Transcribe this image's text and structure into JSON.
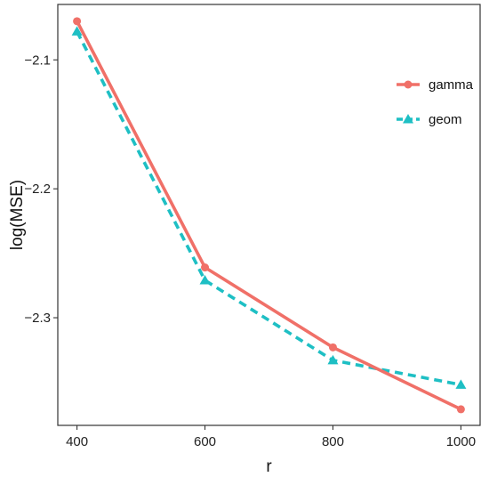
{
  "chart_data": {
    "type": "line",
    "title": "",
    "xlabel": "r",
    "ylabel": "log(MSE)",
    "x": [
      400,
      600,
      800,
      1000
    ],
    "x_ticks": [
      "400",
      "600",
      "800",
      "1000"
    ],
    "y_ticks": [
      {
        "value": -2.1,
        "label": "−2.1"
      },
      {
        "value": -2.2,
        "label": "−2.2"
      },
      {
        "value": -2.3,
        "label": "−2.3"
      }
    ],
    "xlim": [
      370,
      1030
    ],
    "ylim": [
      -2.3835,
      -2.057
    ],
    "grid": false,
    "legend_position": "top-right",
    "series": [
      {
        "name": "gamma",
        "color": "#F07068",
        "marker": "circle",
        "line_style": "solid",
        "values": [
          -2.07,
          -2.261,
          -2.323,
          -2.371
        ]
      },
      {
        "name": "geom",
        "color": "#1EBFC4",
        "marker": "triangle",
        "line_style": "dashed",
        "values": [
          -2.078,
          -2.271,
          -2.333,
          -2.352
        ]
      }
    ]
  }
}
